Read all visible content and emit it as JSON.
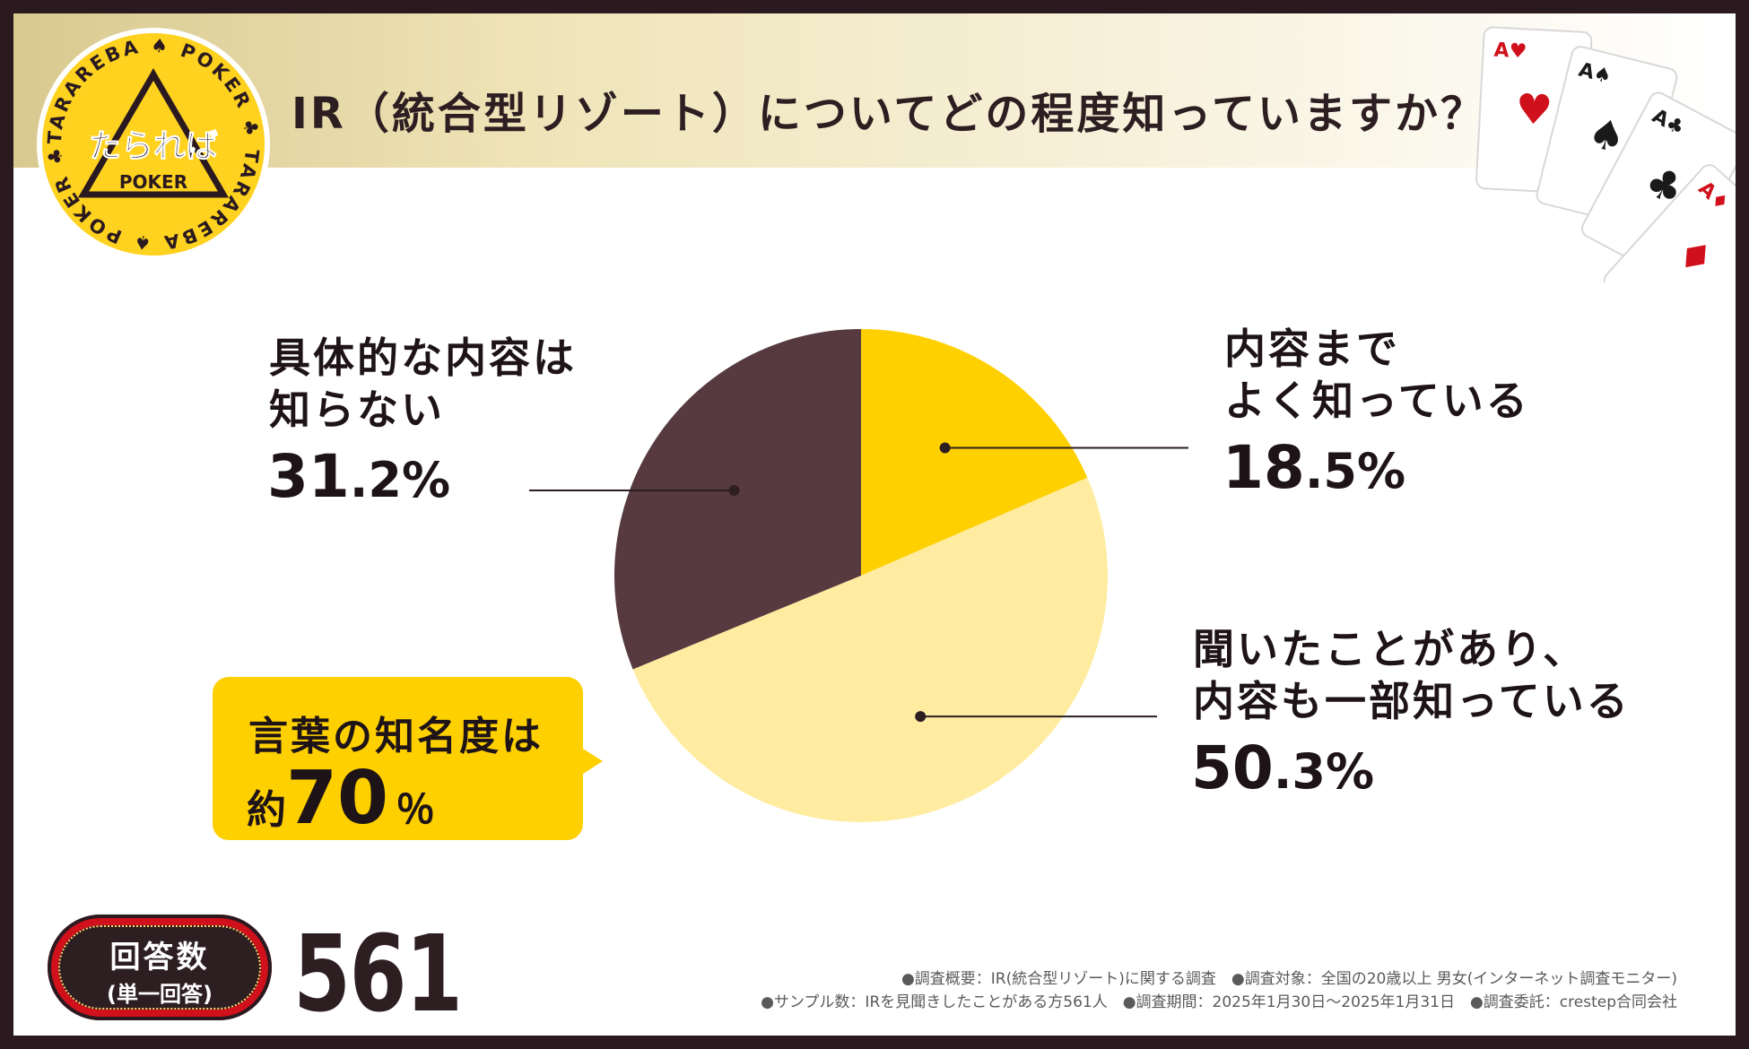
{
  "header": {
    "title": "IR（統合型リゾート）についてどの程度知っていますか？"
  },
  "logo": {
    "brand": "たられば",
    "sub": "POKER",
    "ring_text": "TARAREBA ♠ POKER ♣ TARAREBA ♠ POKER ♣",
    "color": "#ffd21f"
  },
  "cards": [
    "A♥",
    "A♠",
    "A♣",
    "A♦"
  ],
  "chart_data": {
    "type": "pie",
    "title": "IR（統合型リゾート）についてどの程度知っていますか？",
    "slices": [
      {
        "label": "内容までよく知っている",
        "value": 18.5,
        "color": "#ffd000"
      },
      {
        "label": "聞いたことがあり、内容も一部知っている",
        "value": 50.3,
        "color": "#ffeca0"
      },
      {
        "label": "具体的な内容は知らない",
        "value": 31.2,
        "color": "#563a40"
      }
    ],
    "start_angle_deg": 0,
    "direction": "clockwise"
  },
  "labels": {
    "slice1_line1": "内容まで",
    "slice1_line2": "よく知っている",
    "slice1_pct_int": "18",
    "slice1_pct_dec": ".5%",
    "slice2_line1": "聞いたことがあり、",
    "slice2_line2": "内容も一部知っている",
    "slice2_pct_int": "50",
    "slice2_pct_dec": ".3%",
    "slice3_line1": "具体的な内容は",
    "slice3_line2": "知らない",
    "slice3_pct_int": "31",
    "slice3_pct_dec": ".2%"
  },
  "callout": {
    "line1": "言葉の知名度は",
    "prefix": "約",
    "number": "70",
    "unit": "％",
    "color": "#ffd000"
  },
  "responses": {
    "label": "回答数",
    "sub": "(単一回答)",
    "count": "561"
  },
  "notes": {
    "line1": "●調査概要：IR(統合型リゾート)に関する調査　●調査対象：全国の20歳以上 男女(インターネット調査モニター)",
    "line2": "●サンプル数：IRを見聞きしたことがある方561人　●調査期間：2025年1月30日～2025年1月31日　●調査委託：crestep合同会社"
  }
}
